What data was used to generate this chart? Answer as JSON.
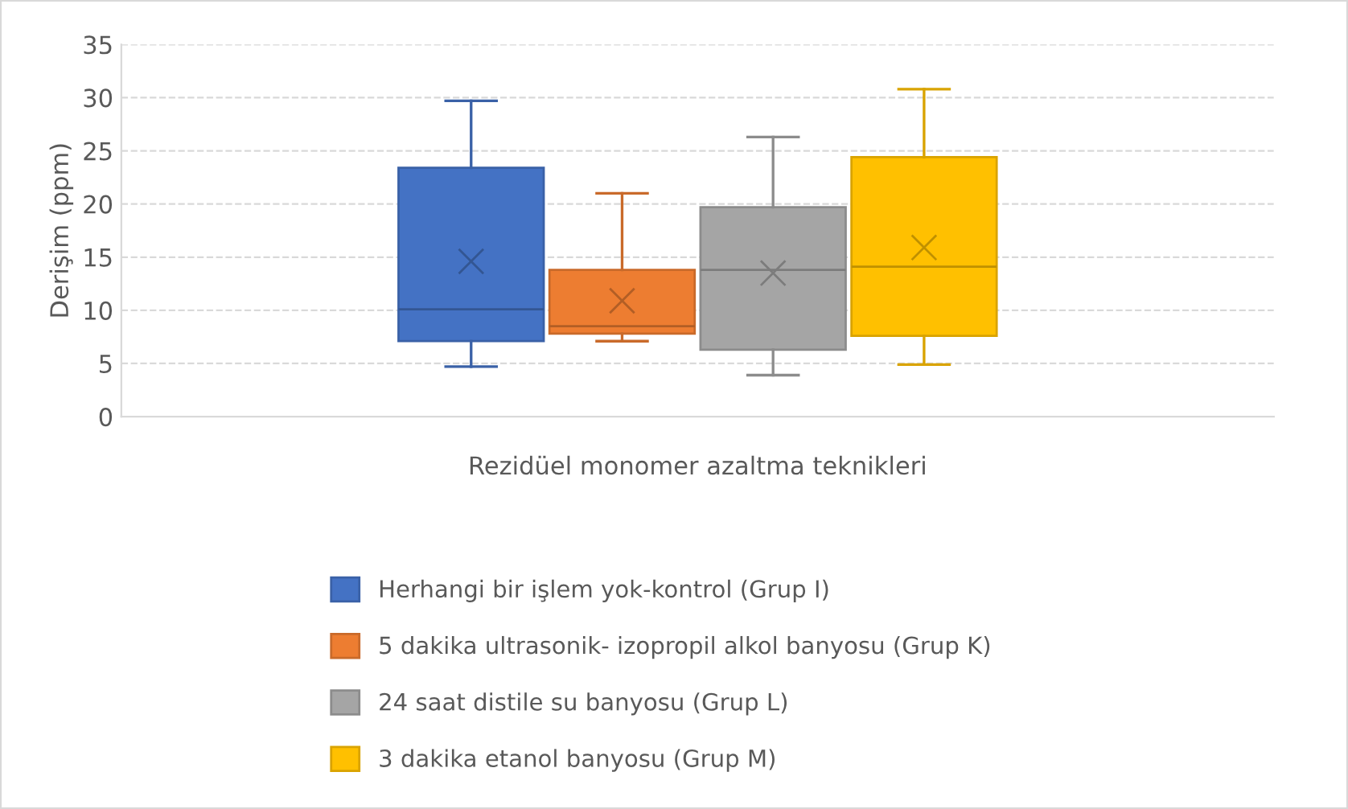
{
  "chart_data": {
    "type": "box",
    "xlabel": "Rezidüel monomer azaltma teknikleri",
    "ylabel": "Derişim (ppm)",
    "categories": [
      null
    ],
    "ylim": [
      0,
      35
    ],
    "yticks": [
      0,
      5,
      10,
      15,
      20,
      25,
      30,
      35
    ],
    "grid": "y",
    "legend": "bottom",
    "series": [
      {
        "name": "Herhangi bir işlem yok-kontrol (Grup I)",
        "color": "#4472c4",
        "boxes": [
          {
            "low": 4.7,
            "q1": 7.1,
            "median": 10.1,
            "q3": 23.4,
            "high": 29.7,
            "mean": 14.6
          }
        ]
      },
      {
        "name": "5 dakika ultrasonik- izopropil alkol banyosu (Grup K)",
        "color": "#ed7d31",
        "boxes": [
          {
            "low": 7.1,
            "q1": 7.8,
            "median": 8.5,
            "q3": 13.8,
            "high": 21.0,
            "mean": 10.9
          }
        ]
      },
      {
        "name": "24 saat distile su banyosu (Grup L)",
        "color": "#a5a5a5",
        "boxes": [
          {
            "low": 3.9,
            "q1": 6.3,
            "median": 13.8,
            "q3": 19.7,
            "high": 26.3,
            "mean": 13.5
          }
        ]
      },
      {
        "name": "3 dakika etanol banyosu (Grup M)",
        "color": "#ffc000",
        "boxes": [
          {
            "low": 4.9,
            "q1": 7.6,
            "median": 14.1,
            "q3": 24.4,
            "high": 30.8,
            "mean": 15.9
          }
        ]
      }
    ]
  }
}
